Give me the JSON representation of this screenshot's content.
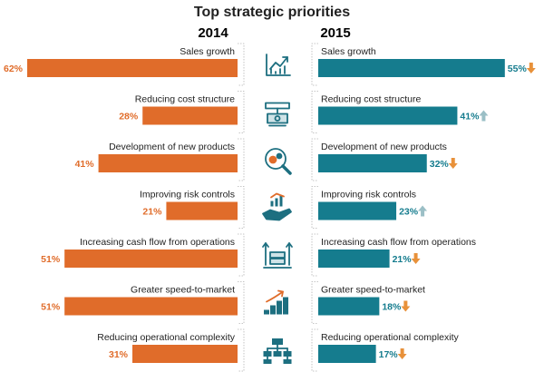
{
  "chart_data": {
    "type": "bar",
    "title": "Top strategic priorities",
    "categories": [
      "Sales growth",
      "Reducing cost structure",
      "Development of new products",
      "Improving risk controls",
      "Increasing cash flow from operations",
      "Greater speed-to-market",
      "Reducing operational complexity"
    ],
    "series": [
      {
        "name": "2014",
        "color": "#e06c2a",
        "values": [
          62,
          28,
          41,
          21,
          51,
          51,
          31
        ],
        "value_labels": [
          "62%",
          "28%",
          "41%",
          "21%",
          "51%",
          "51%",
          "31%"
        ]
      },
      {
        "name": "2015",
        "color": "#157c8e",
        "values": [
          55,
          41,
          32,
          23,
          21,
          18,
          17
        ],
        "value_labels": [
          "55%",
          "41%",
          "32%",
          "23%",
          "21%",
          "18%",
          "17%"
        ],
        "trend": [
          "down",
          "up",
          "down",
          "up",
          "down",
          "down",
          "down"
        ]
      }
    ],
    "trend_colors": {
      "up": "#9bbfc6",
      "down": "#e8913a"
    },
    "icons": [
      "line-chart-icon",
      "money-press-icon",
      "magnifier-gears-icon",
      "hand-chart-icon",
      "cash-flow-icon",
      "rising-steps-icon",
      "org-chart-icon"
    ],
    "xlim": [
      0,
      62
    ]
  }
}
